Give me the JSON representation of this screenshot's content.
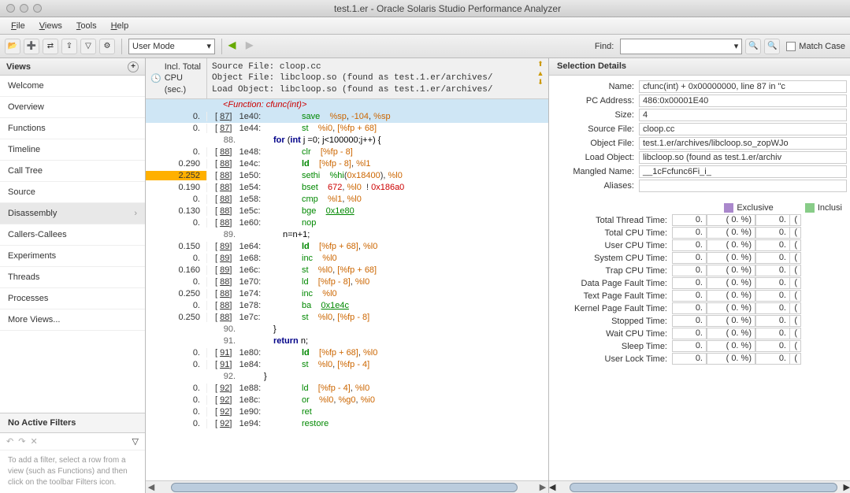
{
  "window": {
    "title": "test.1.er  -  Oracle Solaris Studio Performance Analyzer"
  },
  "menu": {
    "file": "File",
    "views": "Views",
    "tools": "Tools",
    "help": "Help"
  },
  "toolbar": {
    "mode": "User Mode",
    "find_label": "Find:",
    "find_value": "",
    "match_case": "Match Case"
  },
  "views_panel": {
    "header": "Views",
    "items": [
      "Welcome",
      "Overview",
      "Functions",
      "Timeline",
      "Call Tree",
      "Source",
      "Disassembly",
      "Callers-Callees",
      "Experiments",
      "Threads",
      "Processes",
      "More Views..."
    ],
    "selected_index": 6
  },
  "filters": {
    "header": "No Active Filters",
    "hint": "To add a filter, select a row from a view (such as Functions) and then click on the toolbar Filters icon."
  },
  "code": {
    "cpu_header": "Incl. Total\nCPU\n(sec.)",
    "src_header": "Source File: cloop.cc\nObject File: libcloop.so (found as test.1.er/archives/\nLoad Object: libcloop.so (found as test.1.er/archives/",
    "function_header": "<Function: cfunc(int)>",
    "rows": [
      {
        "cpu": "0.",
        "ln": "87",
        "addr": "1e40:",
        "instr": "save",
        "ops": "%sp, -104, %sp",
        "hl": "blue",
        "link": true,
        "op_color": "orange"
      },
      {
        "cpu": "0.",
        "ln": "87",
        "addr": "1e44:",
        "instr": "st",
        "ops": "%i0, [%fp + 68]",
        "link": true,
        "op_color": "orange"
      },
      {
        "src": "88.",
        "text": "for (int j =0; j<100000;j++) {",
        "indent": 4
      },
      {
        "cpu": "0.",
        "ln": "88",
        "addr": "1e48:",
        "instr": "clr",
        "ops": "[%fp - 8]",
        "link": true,
        "op_color": "orange"
      },
      {
        "cpu": "0.290",
        "ln": "88",
        "addr": "1e4c:",
        "instr": "ld",
        "ops": "[%fp - 8], %l1",
        "link": true,
        "bold": true,
        "op_color": "orange"
      },
      {
        "cpu": "2.252",
        "ln": "88",
        "addr": "1e50:",
        "instr": "sethi",
        "ops": "%hi(0x18400), %l0",
        "hl": "orange",
        "link": true,
        "op_color": "orange"
      },
      {
        "cpu": "0.190",
        "ln": "88",
        "addr": "1e54:",
        "instr": "bset",
        "ops": "672, %l0  ! 0x186a0",
        "link": true,
        "op_color": "mixed"
      },
      {
        "cpu": "0.",
        "ln": "88",
        "addr": "1e58:",
        "instr": "cmp",
        "ops": "%l1, %l0",
        "link": true,
        "op_color": "orange"
      },
      {
        "cpu": "0.130",
        "ln": "88",
        "addr": "1e5c:",
        "instr": "bge",
        "ops": "0x1e80",
        "link": true,
        "op_color": "green",
        "op_link": true
      },
      {
        "cpu": "0.",
        "ln": "88",
        "addr": "1e60:",
        "instr": "nop",
        "ops": "",
        "link": true
      },
      {
        "src": "89.",
        "text": "n=n+1;",
        "indent": 6
      },
      {
        "cpu": "0.150",
        "ln": "89",
        "addr": "1e64:",
        "instr": "ld",
        "ops": "[%fp + 68], %l0",
        "link": true,
        "bold": true,
        "op_color": "orange"
      },
      {
        "cpu": "0.",
        "ln": "89",
        "addr": "1e68:",
        "instr": "inc",
        "ops": "%l0",
        "link": true,
        "op_color": "orange"
      },
      {
        "cpu": "0.160",
        "ln": "89",
        "addr": "1e6c:",
        "instr": "st",
        "ops": "%l0, [%fp + 68]",
        "link": true,
        "op_color": "orange"
      },
      {
        "cpu": "0.",
        "ln": "88",
        "addr": "1e70:",
        "instr": "ld",
        "ops": "[%fp - 8], %l0",
        "link": true,
        "op_color": "orange"
      },
      {
        "cpu": "0.250",
        "ln": "88",
        "addr": "1e74:",
        "instr": "inc",
        "ops": "%l0",
        "link": true,
        "op_color": "orange"
      },
      {
        "cpu": "0.",
        "ln": "88",
        "addr": "1e78:",
        "instr": "ba",
        "ops": "0x1e4c",
        "link": true,
        "op_color": "orange",
        "op_link": true
      },
      {
        "cpu": "0.250",
        "ln": "88",
        "addr": "1e7c:",
        "instr": "st",
        "ops": "%l0, [%fp - 8]",
        "link": true,
        "op_color": "orange"
      },
      {
        "src": "90.",
        "text": "}",
        "indent": 4
      },
      {
        "src": "91.",
        "text": "return n;",
        "indent": 4
      },
      {
        "cpu": "0.",
        "ln": "91",
        "addr": "1e80:",
        "instr": "ld",
        "ops": "[%fp + 68], %l0",
        "link": true,
        "bold": true,
        "op_color": "orange"
      },
      {
        "cpu": "0.",
        "ln": "91",
        "addr": "1e84:",
        "instr": "st",
        "ops": "%l0, [%fp - 4]",
        "link": true,
        "op_color": "orange"
      },
      {
        "src": "92.",
        "text": "}",
        "indent": 2
      },
      {
        "cpu": "0.",
        "ln": "92",
        "addr": "1e88:",
        "instr": "ld",
        "ops": "[%fp - 4], %l0",
        "link": true,
        "op_color": "orange"
      },
      {
        "cpu": "0.",
        "ln": "92",
        "addr": "1e8c:",
        "instr": "or",
        "ops": "%l0, %g0, %i0",
        "link": true,
        "op_color": "orange"
      },
      {
        "cpu": "0.",
        "ln": "92",
        "addr": "1e90:",
        "instr": "ret",
        "ops": "",
        "link": true
      },
      {
        "cpu": "0.",
        "ln": "92",
        "addr": "1e94:",
        "instr": "restore",
        "ops": "",
        "link": true
      }
    ]
  },
  "selection": {
    "header": "Selection Details",
    "fields": {
      "name_label": "Name:",
      "name": "cfunc(int) + 0x00000000, line 87 in \"c",
      "pc_label": "PC Address:",
      "pc": "486:0x00001E40",
      "size_label": "Size:",
      "size": "4",
      "src_label": "Source File:",
      "src": "cloop.cc",
      "obj_label": "Object File:",
      "obj": "test.1.er/archives/libcloop.so_zopWJo",
      "load_label": "Load Object:",
      "load": "libcloop.so (found as test.1.er/archiv",
      "mangled_label": "Mangled Name:",
      "mangled": "__1cFcfunc6Fi_i_",
      "aliases_label": "Aliases:",
      "aliases": ""
    },
    "exclusive_label": "Exclusive",
    "inclusive_label": "Inclusi",
    "metrics": [
      "Total Thread Time:",
      "Total CPU Time:",
      "User CPU Time:",
      "System CPU Time:",
      "Trap CPU Time:",
      "Data Page Fault Time:",
      "Text Page Fault Time:",
      "Kernel Page Fault Time:",
      "Stopped Time:",
      "Wait CPU Time:",
      "Sleep Time:",
      "User Lock Time:"
    ],
    "metric_val": "0.",
    "metric_pct": "(   0. %)"
  }
}
